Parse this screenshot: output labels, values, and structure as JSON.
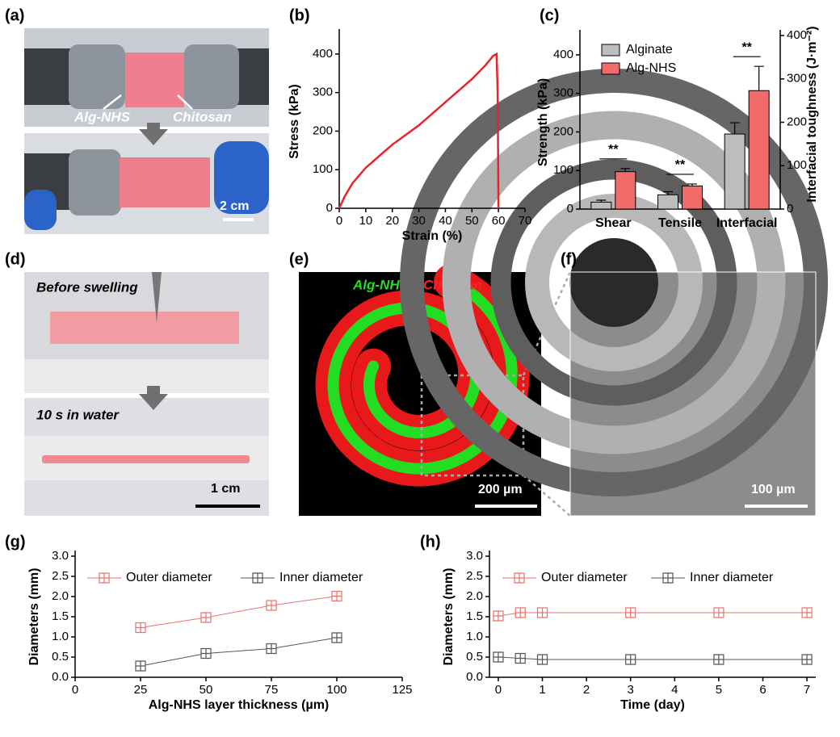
{
  "panels": {
    "a": {
      "label": "(a)",
      "texts": [
        "Alg-NHS",
        "Chitosan",
        "2 cm"
      ]
    },
    "d": {
      "label": "(d)",
      "texts": [
        "Before swelling",
        "10 s in water",
        "1 cm"
      ]
    },
    "e": {
      "label": "(e)",
      "texts": [
        "Alg-NHS",
        "Chitosan",
        "200 µm"
      ]
    },
    "f": {
      "label": "(f)",
      "texts": [
        "100 µm"
      ]
    }
  },
  "chart_data": [
    {
      "type": "line",
      "panel": "(b)",
      "xlabel": "Strain (%)",
      "ylabel": "Stress (kPa)",
      "x": [
        0,
        2,
        5,
        10,
        15,
        20,
        25,
        30,
        35,
        40,
        45,
        50,
        55,
        58,
        59.3,
        59.7,
        60
      ],
      "series": [
        {
          "color": "#e8242a",
          "values": [
            0,
            30,
            65,
            105,
            135,
            165,
            190,
            215,
            245,
            275,
            305,
            335,
            370,
            395,
            400,
            300,
            0
          ]
        }
      ],
      "xlim": [
        0,
        70
      ],
      "xticks": [
        0,
        10,
        20,
        30,
        40,
        50,
        60,
        70
      ],
      "ylim": [
        0,
        450
      ],
      "yticks": [
        0,
        100,
        200,
        300,
        400
      ],
      "markers": false
    },
    {
      "type": "bar",
      "panel": "(c)",
      "ylabel": "Strength (kPa)",
      "y2label": "Interfacial toughness (J·m⁻²)",
      "categories": [
        "Shear",
        "Tensile",
        "Interfacial"
      ],
      "axes": [
        "y",
        "y",
        "y2"
      ],
      "series": [
        {
          "name": "Alginate",
          "color": "#bdbdbd",
          "values": [
            18,
            37,
            173
          ],
          "errors": [
            5,
            8,
            26
          ]
        },
        {
          "name": "Alg-NHS",
          "color": "#f26b6b",
          "values": [
            97,
            60,
            273
          ],
          "errors": [
            8,
            5,
            56
          ]
        }
      ],
      "annotations": [
        "**",
        "**",
        "**"
      ],
      "ylim": [
        0,
        450
      ],
      "yticks": [
        0,
        100,
        200,
        300,
        400
      ],
      "y2lim": [
        0,
        400
      ],
      "y2ticks": [
        0,
        100,
        200,
        300,
        400
      ],
      "legend": "top-left"
    },
    {
      "type": "line",
      "panel": "(g)",
      "xlabel": "Alg-NHS layer thickness (µm)",
      "ylabel": "Diameters (mm)",
      "x": [
        25,
        50,
        75,
        100
      ],
      "series": [
        {
          "name": "Outer diameter",
          "color": "#e8736f",
          "values": [
            1.23,
            1.48,
            1.78,
            2.01
          ]
        },
        {
          "name": "Inner diameter",
          "color": "#555555",
          "values": [
            0.28,
            0.59,
            0.71,
            0.98
          ]
        }
      ],
      "xlim": [
        0,
        125
      ],
      "xticks": [
        0,
        25,
        50,
        75,
        100,
        125
      ],
      "ylim": [
        0,
        3
      ],
      "yticks": [
        {
          "value": 0,
          "label": "0.0"
        },
        0.5,
        {
          "value": 1,
          "label": "1.0"
        },
        1.5,
        {
          "value": 2,
          "label": "2.0"
        },
        2.5,
        {
          "value": 3,
          "label": "3.0"
        }
      ],
      "markers": true,
      "legend": "top"
    },
    {
      "type": "line",
      "panel": "(h)",
      "xlabel": "Time (day)",
      "ylabel": "Diameters (mm)",
      "x": [
        0,
        0.5,
        1,
        3,
        5,
        7
      ],
      "series": [
        {
          "name": "Outer diameter",
          "color": "#e8736f",
          "values": [
            1.52,
            1.6,
            1.6,
            1.6,
            1.6,
            1.6
          ]
        },
        {
          "name": "Inner diameter",
          "color": "#555555",
          "values": [
            0.5,
            0.47,
            0.44,
            0.44,
            0.44,
            0.44
          ]
        }
      ],
      "xlim": [
        -0.2,
        7.2
      ],
      "xticks": [
        0,
        1,
        2,
        3,
        4,
        5,
        6,
        7
      ],
      "ylim": [
        0,
        3
      ],
      "yticks": [
        {
          "value": 0,
          "label": "0.0"
        },
        0.5,
        {
          "value": 1,
          "label": "1.0"
        },
        1.5,
        {
          "value": 2,
          "label": "2.0"
        },
        2.5,
        {
          "value": 3,
          "label": "3.0"
        }
      ],
      "markers": true,
      "legend": "top"
    }
  ]
}
